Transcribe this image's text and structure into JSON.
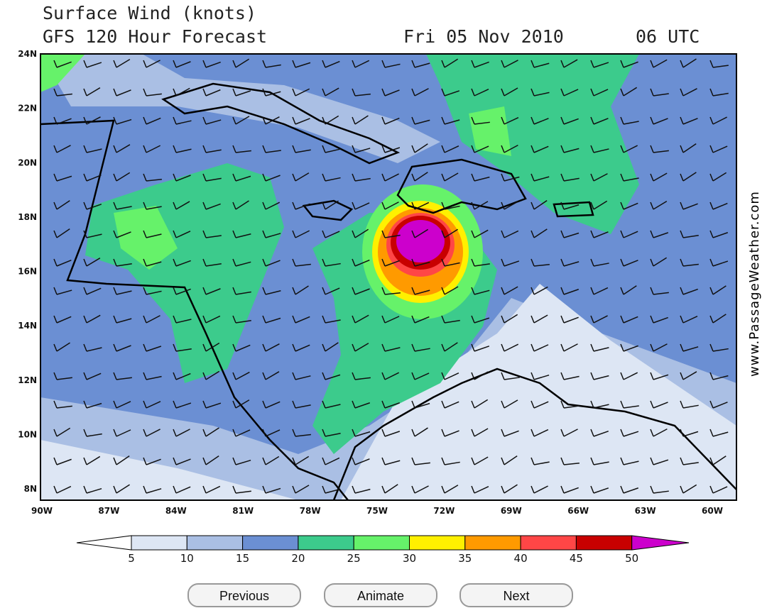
{
  "header": {
    "title": "Surface Wind (knots)",
    "subtitle": "GFS 120 Hour Forecast",
    "date": "Fri 05 Nov 2010",
    "time": "06 UTC"
  },
  "map": {
    "lat_labels": [
      "24N",
      "22N",
      "20N",
      "18N",
      "16N",
      "14N",
      "12N",
      "10N",
      "8N"
    ],
    "lon_labels": [
      "90W",
      "87W",
      "84W",
      "81W",
      "78W",
      "75W",
      "72W",
      "69W",
      "66W",
      "63W",
      "60W"
    ],
    "watermark": "www.PassageWeather.com"
  },
  "colorbar": {
    "ticks": [
      5,
      10,
      15,
      20,
      25,
      30,
      35,
      40,
      45,
      50
    ],
    "colors": [
      "#ffffff",
      "#dde6f4",
      "#aabfe4",
      "#6b8fd3",
      "#3ccb8c",
      "#66f26a",
      "#fff000",
      "#ff9a00",
      "#ff4646",
      "#c80000",
      "#cc00cc"
    ]
  },
  "buttons": [
    "Previous",
    "Animate",
    "Next"
  ]
}
